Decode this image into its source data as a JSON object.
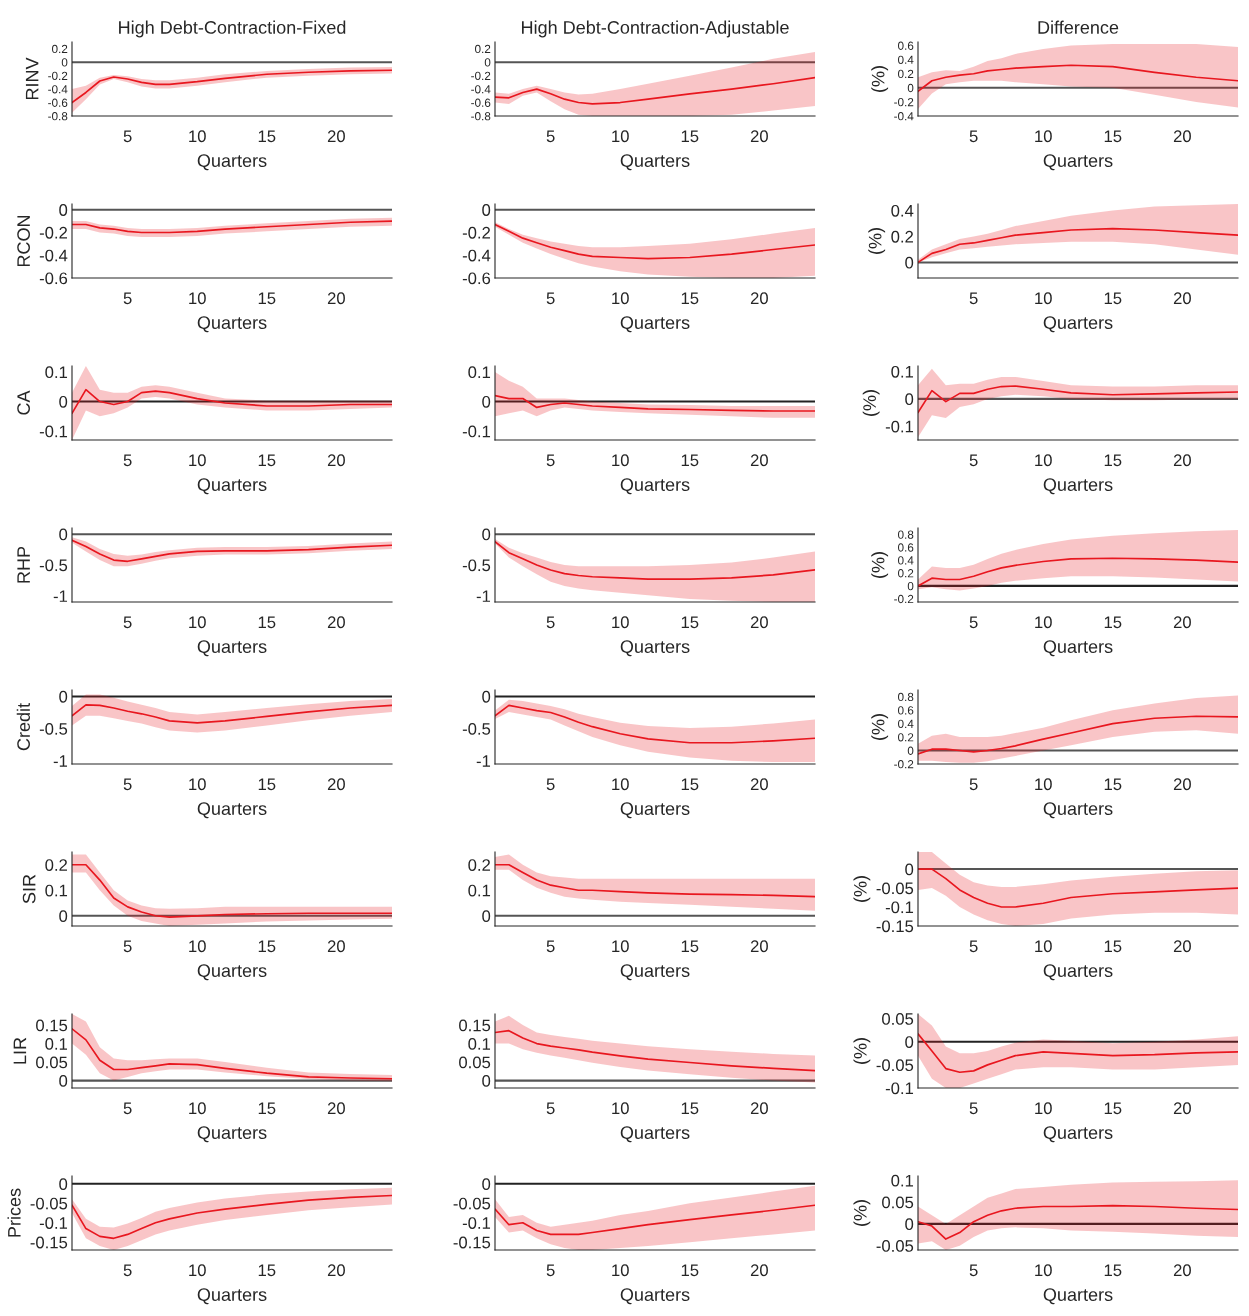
{
  "chart_data": [
    {
      "type": "line",
      "title": "High Debt-Contraction-Fixed",
      "ylabel": "RINV",
      "xlabel": "Quarters",
      "xlim": [
        1,
        24
      ],
      "xticks": [
        5,
        10,
        15,
        20
      ],
      "ylim": [
        -0.8,
        0.3
      ],
      "yticks": [
        -0.8,
        -0.6,
        -0.4,
        -0.2,
        0,
        0.2
      ],
      "ref_lines": [
        {
          "axis": "y",
          "value": 0,
          "color": "#555555"
        }
      ],
      "series": [
        {
          "color": "#e8171f",
          "x": [
            1,
            2,
            3,
            4,
            5,
            6,
            7,
            8,
            10,
            12,
            15,
            18,
            21,
            24
          ],
          "values": [
            -0.6,
            -0.45,
            -0.28,
            -0.22,
            -0.25,
            -0.3,
            -0.33,
            -0.33,
            -0.29,
            -0.24,
            -0.18,
            -0.15,
            -0.13,
            -0.12
          ],
          "lower": [
            -0.75,
            -0.55,
            -0.33,
            -0.25,
            -0.3,
            -0.36,
            -0.39,
            -0.39,
            -0.35,
            -0.3,
            -0.23,
            -0.2,
            -0.18,
            -0.17
          ],
          "upper": [
            -0.4,
            -0.35,
            -0.23,
            -0.19,
            -0.21,
            -0.25,
            -0.27,
            -0.27,
            -0.23,
            -0.18,
            -0.13,
            -0.1,
            -0.08,
            -0.07
          ]
        }
      ]
    },
    {
      "type": "line",
      "title": "High Debt-Contraction-Adjustable",
      "xlabel": "Quarters",
      "xlim": [
        1,
        24
      ],
      "xticks": [
        5,
        10,
        15,
        20
      ],
      "ylim": [
        -0.8,
        0.3
      ],
      "yticks": [
        -0.8,
        -0.6,
        -0.4,
        -0.2,
        0,
        0.2
      ],
      "ref_lines": [
        {
          "axis": "y",
          "value": 0,
          "color": "#555555"
        }
      ],
      "series": [
        {
          "color": "#e8171f",
          "x": [
            1,
            2,
            3,
            4,
            5,
            6,
            7,
            8,
            10,
            12,
            15,
            18,
            21,
            24
          ],
          "values": [
            -0.52,
            -0.53,
            -0.45,
            -0.4,
            -0.47,
            -0.55,
            -0.6,
            -0.62,
            -0.6,
            -0.55,
            -0.47,
            -0.4,
            -0.32,
            -0.23
          ],
          "lower": [
            -0.6,
            -0.62,
            -0.5,
            -0.45,
            -0.58,
            -0.7,
            -0.78,
            -0.8,
            -0.8,
            -0.8,
            -0.8,
            -0.78,
            -0.72,
            -0.65
          ],
          "upper": [
            -0.45,
            -0.47,
            -0.4,
            -0.35,
            -0.4,
            -0.45,
            -0.48,
            -0.47,
            -0.4,
            -0.32,
            -0.2,
            -0.08,
            0.05,
            0.15
          ]
        }
      ]
    },
    {
      "type": "line",
      "title": "Difference",
      "ylabel": "(%)",
      "xlabel": "Quarters",
      "xlim": [
        1,
        24
      ],
      "xticks": [
        5,
        10,
        15,
        20
      ],
      "ylim": [
        -0.4,
        0.65
      ],
      "yticks": [
        -0.4,
        -0.2,
        0,
        0.2,
        0.4,
        0.6
      ],
      "ref_lines": [
        {
          "axis": "y",
          "value": 0,
          "color": "#555555"
        }
      ],
      "series": [
        {
          "color": "#e8171f",
          "x": [
            1,
            2,
            3,
            4,
            5,
            6,
            7,
            8,
            10,
            12,
            15,
            18,
            21,
            24
          ],
          "values": [
            -0.05,
            0.1,
            0.15,
            0.18,
            0.2,
            0.24,
            0.26,
            0.28,
            0.3,
            0.32,
            0.3,
            0.22,
            0.15,
            0.1
          ],
          "lower": [
            -0.3,
            -0.08,
            0.05,
            0.08,
            0.1,
            0.1,
            0.1,
            0.08,
            0.05,
            0.02,
            0,
            -0.1,
            -0.2,
            -0.28
          ],
          "upper": [
            0.15,
            0.22,
            0.25,
            0.24,
            0.3,
            0.38,
            0.42,
            0.48,
            0.55,
            0.6,
            0.62,
            0.62,
            0.62,
            0.58
          ]
        }
      ]
    },
    {
      "type": "line",
      "ylabel": "RCON",
      "xlabel": "Quarters",
      "xlim": [
        1,
        24
      ],
      "xticks": [
        5,
        10,
        15,
        20
      ],
      "ylim": [
        -0.6,
        0.05
      ],
      "yticks": [
        -0.6,
        -0.4,
        -0.2,
        0
      ],
      "ref_lines": [
        {
          "axis": "y",
          "value": 0,
          "color": "#555555"
        }
      ],
      "series": [
        {
          "color": "#e8171f",
          "x": [
            1,
            2,
            3,
            4,
            5,
            6,
            7,
            8,
            10,
            12,
            15,
            18,
            21,
            24
          ],
          "values": [
            -0.13,
            -0.13,
            -0.16,
            -0.17,
            -0.19,
            -0.2,
            -0.2,
            -0.2,
            -0.19,
            -0.17,
            -0.15,
            -0.13,
            -0.11,
            -0.1
          ],
          "lower": [
            -0.17,
            -0.17,
            -0.2,
            -0.21,
            -0.23,
            -0.24,
            -0.24,
            -0.24,
            -0.23,
            -0.21,
            -0.19,
            -0.17,
            -0.15,
            -0.14
          ],
          "upper": [
            -0.1,
            -0.1,
            -0.13,
            -0.14,
            -0.16,
            -0.17,
            -0.17,
            -0.17,
            -0.16,
            -0.14,
            -0.12,
            -0.1,
            -0.08,
            -0.07
          ]
        }
      ]
    },
    {
      "type": "line",
      "xlabel": "Quarters",
      "xlim": [
        1,
        24
      ],
      "xticks": [
        5,
        10,
        15,
        20
      ],
      "ylim": [
        -0.6,
        0.05
      ],
      "yticks": [
        -0.6,
        -0.4,
        -0.2,
        0
      ],
      "ref_lines": [
        {
          "axis": "y",
          "value": 0,
          "color": "#555555"
        }
      ],
      "series": [
        {
          "color": "#e8171f",
          "x": [
            1,
            2,
            3,
            4,
            5,
            6,
            7,
            8,
            10,
            12,
            15,
            18,
            21,
            24
          ],
          "values": [
            -0.13,
            -0.19,
            -0.25,
            -0.29,
            -0.33,
            -0.36,
            -0.39,
            -0.41,
            -0.42,
            -0.43,
            -0.42,
            -0.39,
            -0.35,
            -0.31
          ],
          "lower": [
            -0.15,
            -0.22,
            -0.29,
            -0.34,
            -0.39,
            -0.43,
            -0.47,
            -0.5,
            -0.54,
            -0.57,
            -0.59,
            -0.6,
            -0.6,
            -0.58
          ],
          "upper": [
            -0.11,
            -0.17,
            -0.22,
            -0.25,
            -0.28,
            -0.3,
            -0.32,
            -0.33,
            -0.33,
            -0.32,
            -0.3,
            -0.26,
            -0.21,
            -0.16
          ]
        }
      ]
    },
    {
      "type": "line",
      "ylabel": "(%)",
      "xlabel": "Quarters",
      "xlim": [
        1,
        24
      ],
      "xticks": [
        5,
        10,
        15,
        20
      ],
      "ylim": [
        -0.12,
        0.45
      ],
      "yticks": [
        0,
        0.2,
        0.4
      ],
      "ref_lines": [
        {
          "axis": "y",
          "value": 0,
          "color": "#555555"
        }
      ],
      "series": [
        {
          "color": "#e8171f",
          "x": [
            1,
            2,
            3,
            4,
            5,
            6,
            7,
            8,
            10,
            12,
            15,
            18,
            21,
            24
          ],
          "values": [
            0.0,
            0.07,
            0.1,
            0.14,
            0.15,
            0.17,
            0.19,
            0.21,
            0.23,
            0.25,
            0.26,
            0.25,
            0.23,
            0.21
          ],
          "lower": [
            0,
            0.04,
            0.07,
            0.1,
            0.11,
            0.12,
            0.13,
            0.14,
            0.15,
            0.16,
            0.16,
            0.14,
            0.1,
            0.06
          ],
          "upper": [
            0.02,
            0.1,
            0.14,
            0.18,
            0.2,
            0.22,
            0.25,
            0.28,
            0.32,
            0.36,
            0.4,
            0.43,
            0.44,
            0.45
          ]
        }
      ]
    },
    {
      "type": "line",
      "ylabel": "CA",
      "xlabel": "Quarters",
      "xlim": [
        1,
        24
      ],
      "xticks": [
        5,
        10,
        15,
        20
      ],
      "ylim": [
        -0.13,
        0.12
      ],
      "yticks": [
        -0.1,
        0,
        0.1
      ],
      "ref_lines": [
        {
          "axis": "y",
          "value": 0,
          "color": "#222222"
        }
      ],
      "series": [
        {
          "color": "#e8171f",
          "x": [
            1,
            2,
            3,
            4,
            5,
            6,
            7,
            8,
            10,
            12,
            15,
            18,
            21,
            24
          ],
          "values": [
            -0.04,
            0.04,
            0.0,
            -0.01,
            0.0,
            0.03,
            0.035,
            0.03,
            0.01,
            -0.005,
            -0.015,
            -0.015,
            -0.01,
            -0.01
          ],
          "lower": [
            -0.13,
            -0.03,
            -0.05,
            -0.04,
            -0.02,
            0.01,
            0.015,
            0.01,
            -0.01,
            -0.02,
            -0.03,
            -0.03,
            -0.025,
            -0.02
          ],
          "upper": [
            0.03,
            0.12,
            0.04,
            0.03,
            0.03,
            0.05,
            0.055,
            0.05,
            0.03,
            0.01,
            0.003,
            0.003,
            0.003,
            0.003
          ]
        }
      ]
    },
    {
      "type": "line",
      "xlabel": "Quarters",
      "xlim": [
        1,
        24
      ],
      "xticks": [
        5,
        10,
        15,
        20
      ],
      "ylim": [
        -0.13,
        0.12
      ],
      "yticks": [
        -0.1,
        0,
        0.1
      ],
      "ref_lines": [
        {
          "axis": "y",
          "value": 0,
          "color": "#222222"
        }
      ],
      "series": [
        {
          "color": "#e8171f",
          "x": [
            1,
            2,
            3,
            4,
            5,
            6,
            7,
            8,
            10,
            12,
            15,
            18,
            21,
            24
          ],
          "values": [
            0.02,
            0.01,
            0.01,
            -0.02,
            -0.01,
            -0.005,
            -0.01,
            -0.015,
            -0.02,
            -0.025,
            -0.027,
            -0.03,
            -0.032,
            -0.032
          ],
          "lower": [
            -0.05,
            -0.04,
            -0.03,
            -0.05,
            -0.03,
            -0.02,
            -0.025,
            -0.03,
            -0.035,
            -0.04,
            -0.045,
            -0.05,
            -0.055,
            -0.055
          ],
          "upper": [
            0.1,
            0.07,
            0.05,
            0.01,
            0.01,
            0.01,
            0.005,
            0.0,
            -0.005,
            -0.01,
            -0.012,
            -0.015,
            -0.015,
            -0.015
          ]
        }
      ]
    },
    {
      "type": "line",
      "ylabel": "(%)",
      "xlabel": "Quarters",
      "xlim": [
        1,
        24
      ],
      "xticks": [
        5,
        10,
        15,
        20
      ],
      "ylim": [
        -0.15,
        0.12
      ],
      "yticks": [
        -0.1,
        0,
        0.1
      ],
      "ref_lines": [
        {
          "axis": "y",
          "value": 0,
          "color": "#555555"
        }
      ],
      "series": [
        {
          "color": "#e8171f",
          "x": [
            1,
            2,
            3,
            4,
            5,
            6,
            7,
            8,
            10,
            12,
            15,
            18,
            21,
            24
          ],
          "values": [
            -0.05,
            0.03,
            -0.01,
            0.02,
            0.02,
            0.035,
            0.045,
            0.047,
            0.035,
            0.022,
            0.015,
            0.018,
            0.022,
            0.025
          ],
          "lower": [
            -0.14,
            -0.06,
            -0.07,
            -0.03,
            -0.02,
            0.0,
            0.01,
            0.015,
            0.01,
            0.0,
            -0.005,
            -0.005,
            -0.002,
            0
          ],
          "upper": [
            0.05,
            0.11,
            0.05,
            0.055,
            0.055,
            0.07,
            0.08,
            0.08,
            0.065,
            0.05,
            0.045,
            0.045,
            0.05,
            0.05
          ]
        }
      ]
    },
    {
      "type": "line",
      "ylabel": "RHP",
      "xlabel": "Quarters",
      "xlim": [
        1,
        24
      ],
      "xticks": [
        5,
        10,
        15,
        20
      ],
      "ylim": [
        -1.1,
        0.1
      ],
      "yticks": [
        -1,
        -0.5,
        0
      ],
      "ref_lines": [
        {
          "axis": "y",
          "value": 0,
          "color": "#555555"
        }
      ],
      "series": [
        {
          "color": "#e8171f",
          "x": [
            1,
            2,
            3,
            4,
            5,
            6,
            7,
            8,
            10,
            12,
            15,
            18,
            21,
            24
          ],
          "values": [
            -0.1,
            -0.2,
            -0.32,
            -0.42,
            -0.44,
            -0.4,
            -0.36,
            -0.32,
            -0.28,
            -0.27,
            -0.27,
            -0.25,
            -0.21,
            -0.18
          ],
          "lower": [
            -0.14,
            -0.28,
            -0.42,
            -0.52,
            -0.52,
            -0.48,
            -0.43,
            -0.39,
            -0.35,
            -0.33,
            -0.33,
            -0.31,
            -0.27,
            -0.24
          ],
          "upper": [
            -0.05,
            -0.12,
            -0.24,
            -0.32,
            -0.35,
            -0.33,
            -0.29,
            -0.26,
            -0.22,
            -0.21,
            -0.21,
            -0.19,
            -0.15,
            -0.12
          ]
        }
      ]
    },
    {
      "type": "line",
      "xlabel": "Quarters",
      "xlim": [
        1,
        24
      ],
      "xticks": [
        5,
        10,
        15,
        20
      ],
      "ylim": [
        -1.1,
        0.1
      ],
      "yticks": [
        -1,
        -0.5,
        0
      ],
      "ref_lines": [
        {
          "axis": "y",
          "value": 0,
          "color": "#555555"
        }
      ],
      "series": [
        {
          "color": "#e8171f",
          "x": [
            1,
            2,
            3,
            4,
            5,
            6,
            7,
            8,
            10,
            12,
            15,
            18,
            21,
            24
          ],
          "values": [
            -0.12,
            -0.3,
            -0.4,
            -0.5,
            -0.58,
            -0.64,
            -0.67,
            -0.69,
            -0.71,
            -0.73,
            -0.73,
            -0.71,
            -0.66,
            -0.58
          ],
          "lower": [
            -0.15,
            -0.38,
            -0.52,
            -0.65,
            -0.77,
            -0.84,
            -0.88,
            -0.91,
            -0.95,
            -0.99,
            -1.05,
            -1.08,
            -1.1,
            -1.1
          ],
          "upper": [
            -0.08,
            -0.22,
            -0.31,
            -0.38,
            -0.45,
            -0.5,
            -0.52,
            -0.52,
            -0.52,
            -0.52,
            -0.5,
            -0.46,
            -0.38,
            -0.28
          ]
        }
      ]
    },
    {
      "type": "line",
      "ylabel": "(%)",
      "xlabel": "Quarters",
      "xlim": [
        1,
        24
      ],
      "xticks": [
        5,
        10,
        15,
        20
      ],
      "ylim": [
        -0.25,
        0.9
      ],
      "yticks": [
        -0.2,
        0,
        0.2,
        0.4,
        0.6,
        0.8
      ],
      "ref_lines": [
        {
          "axis": "y",
          "value": 0,
          "color": "#222222"
        }
      ],
      "series": [
        {
          "color": "#e8171f",
          "x": [
            1,
            2,
            3,
            4,
            5,
            6,
            7,
            8,
            10,
            12,
            15,
            18,
            21,
            24
          ],
          "values": [
            0.0,
            0.12,
            0.1,
            0.1,
            0.15,
            0.22,
            0.28,
            0.32,
            0.38,
            0.42,
            0.43,
            0.42,
            0.4,
            0.37
          ],
          "lower": [
            -0.05,
            -0.02,
            -0.05,
            -0.07,
            -0.04,
            0.0,
            0.05,
            0.08,
            0.12,
            0.15,
            0.15,
            0.13,
            0.1,
            0.07
          ],
          "upper": [
            0.1,
            0.3,
            0.28,
            0.28,
            0.33,
            0.42,
            0.5,
            0.56,
            0.65,
            0.72,
            0.78,
            0.82,
            0.85,
            0.87
          ]
        }
      ]
    },
    {
      "type": "line",
      "ylabel": "Credit",
      "xlabel": "Quarters",
      "xlim": [
        1,
        24
      ],
      "xticks": [
        5,
        10,
        15,
        20
      ],
      "ylim": [
        -1.05,
        0.1
      ],
      "yticks": [
        -1,
        -0.5,
        0
      ],
      "ref_lines": [
        {
          "axis": "y",
          "value": 0,
          "color": "#222222"
        }
      ],
      "series": [
        {
          "color": "#e8171f",
          "x": [
            1,
            2,
            3,
            4,
            5,
            6,
            7,
            8,
            10,
            12,
            15,
            18,
            21,
            24
          ],
          "values": [
            -0.3,
            -0.13,
            -0.14,
            -0.18,
            -0.23,
            -0.27,
            -0.32,
            -0.38,
            -0.41,
            -0.38,
            -0.31,
            -0.24,
            -0.18,
            -0.14
          ],
          "lower": [
            -0.45,
            -0.3,
            -0.3,
            -0.34,
            -0.38,
            -0.42,
            -0.48,
            -0.53,
            -0.56,
            -0.53,
            -0.45,
            -0.37,
            -0.3,
            -0.24
          ],
          "upper": [
            -0.15,
            0.03,
            0.03,
            -0.02,
            -0.08,
            -0.13,
            -0.18,
            -0.24,
            -0.28,
            -0.24,
            -0.18,
            -0.12,
            -0.07,
            -0.04
          ]
        }
      ]
    },
    {
      "type": "line",
      "xlabel": "Quarters",
      "xlim": [
        1,
        24
      ],
      "xticks": [
        5,
        10,
        15,
        20
      ],
      "ylim": [
        -1.05,
        0.1
      ],
      "yticks": [
        -1,
        -0.5,
        0
      ],
      "ref_lines": [
        {
          "axis": "y",
          "value": 0,
          "color": "#222222"
        }
      ],
      "series": [
        {
          "color": "#e8171f",
          "x": [
            1,
            2,
            3,
            4,
            5,
            6,
            7,
            8,
            10,
            12,
            15,
            18,
            21,
            24
          ],
          "values": [
            -0.3,
            -0.14,
            -0.18,
            -0.22,
            -0.25,
            -0.32,
            -0.4,
            -0.47,
            -0.58,
            -0.66,
            -0.72,
            -0.72,
            -0.69,
            -0.65
          ],
          "lower": [
            -0.35,
            -0.24,
            -0.28,
            -0.32,
            -0.36,
            -0.45,
            -0.54,
            -0.63,
            -0.76,
            -0.86,
            -0.95,
            -1.0,
            -1.02,
            -1.02
          ],
          "upper": [
            -0.22,
            -0.05,
            -0.07,
            -0.11,
            -0.15,
            -0.2,
            -0.27,
            -0.32,
            -0.41,
            -0.46,
            -0.49,
            -0.47,
            -0.42,
            -0.36
          ]
        }
      ]
    },
    {
      "type": "line",
      "ylabel": "(%)",
      "xlabel": "Quarters",
      "xlim": [
        1,
        24
      ],
      "xticks": [
        5,
        10,
        15,
        20
      ],
      "ylim": [
        -0.2,
        0.9
      ],
      "yticks": [
        -0.2,
        0,
        0.2,
        0.4,
        0.6,
        0.8
      ],
      "ref_lines": [
        {
          "axis": "y",
          "value": 0,
          "color": "#555555"
        }
      ],
      "series": [
        {
          "color": "#e8171f",
          "x": [
            1,
            2,
            3,
            4,
            5,
            6,
            7,
            8,
            10,
            12,
            15,
            18,
            21,
            24
          ],
          "values": [
            -0.05,
            0.02,
            0.02,
            0.0,
            -0.02,
            0.0,
            0.03,
            0.07,
            0.17,
            0.26,
            0.4,
            0.48,
            0.51,
            0.5
          ],
          "lower": [
            -0.15,
            -0.15,
            -0.17,
            -0.18,
            -0.18,
            -0.16,
            -0.12,
            -0.08,
            0.0,
            0.08,
            0.2,
            0.28,
            0.3,
            0.25
          ],
          "upper": [
            0.1,
            0.22,
            0.25,
            0.2,
            0.2,
            0.2,
            0.22,
            0.26,
            0.34,
            0.45,
            0.6,
            0.7,
            0.78,
            0.82
          ]
        }
      ]
    },
    {
      "type": "line",
      "ylabel": "SIR",
      "xlabel": "Quarters",
      "xlim": [
        1,
        24
      ],
      "xticks": [
        5,
        10,
        15,
        20
      ],
      "ylim": [
        -0.04,
        0.25
      ],
      "yticks": [
        0,
        0.1,
        0.2
      ],
      "ref_lines": [
        {
          "axis": "y",
          "value": 0,
          "color": "#555555"
        }
      ],
      "series": [
        {
          "color": "#e8171f",
          "x": [
            1,
            2,
            3,
            4,
            5,
            6,
            7,
            8,
            10,
            12,
            15,
            18,
            21,
            24
          ],
          "values": [
            0.2,
            0.2,
            0.14,
            0.07,
            0.035,
            0.015,
            0.0,
            -0.005,
            0.0,
            0.005,
            0.008,
            0.01,
            0.01,
            0.01
          ],
          "lower": [
            0.17,
            0.17,
            0.1,
            0.04,
            0.0,
            -0.02,
            -0.03,
            -0.04,
            -0.035,
            -0.03,
            -0.022,
            -0.018,
            -0.015,
            -0.012
          ],
          "upper": [
            0.24,
            0.24,
            0.17,
            0.1,
            0.06,
            0.04,
            0.03,
            0.028,
            0.03,
            0.035,
            0.035,
            0.035,
            0.035,
            0.035
          ]
        }
      ]
    },
    {
      "type": "line",
      "xlabel": "Quarters",
      "xlim": [
        1,
        24
      ],
      "xticks": [
        5,
        10,
        15,
        20
      ],
      "ylim": [
        -0.04,
        0.25
      ],
      "yticks": [
        0,
        0.1,
        0.2
      ],
      "ref_lines": [
        {
          "axis": "y",
          "value": 0,
          "color": "#555555"
        }
      ],
      "series": [
        {
          "color": "#e8171f",
          "x": [
            1,
            2,
            3,
            4,
            5,
            6,
            7,
            8,
            10,
            12,
            15,
            18,
            21,
            24
          ],
          "values": [
            0.2,
            0.2,
            0.17,
            0.14,
            0.12,
            0.11,
            0.1,
            0.1,
            0.095,
            0.09,
            0.085,
            0.083,
            0.08,
            0.075
          ],
          "lower": [
            0.18,
            0.18,
            0.14,
            0.11,
            0.09,
            0.075,
            0.068,
            0.063,
            0.055,
            0.05,
            0.043,
            0.035,
            0.028,
            0.02
          ],
          "upper": [
            0.23,
            0.24,
            0.2,
            0.17,
            0.155,
            0.15,
            0.145,
            0.145,
            0.145,
            0.145,
            0.145,
            0.145,
            0.145,
            0.145
          ]
        }
      ]
    },
    {
      "type": "line",
      "ylabel": "(%)",
      "xlabel": "Quarters",
      "xlim": [
        1,
        24
      ],
      "xticks": [
        5,
        10,
        15,
        20
      ],
      "ylim": [
        -0.15,
        0.045
      ],
      "yticks": [
        -0.15,
        -0.1,
        -0.05,
        0
      ],
      "ref_lines": [
        {
          "axis": "y",
          "value": 0,
          "color": "#555555"
        }
      ],
      "series": [
        {
          "color": "#e8171f",
          "x": [
            1,
            2,
            3,
            4,
            5,
            6,
            7,
            8,
            10,
            12,
            15,
            18,
            21,
            24
          ],
          "values": [
            0.0,
            0.0,
            -0.025,
            -0.055,
            -0.075,
            -0.09,
            -0.1,
            -0.1,
            -0.09,
            -0.075,
            -0.065,
            -0.06,
            -0.055,
            -0.05
          ],
          "lower": [
            -0.055,
            -0.05,
            -0.07,
            -0.1,
            -0.12,
            -0.135,
            -0.145,
            -0.15,
            -0.145,
            -0.13,
            -0.12,
            -0.115,
            -0.115,
            -0.12
          ],
          "upper": [
            0.045,
            0.045,
            0.015,
            -0.015,
            -0.035,
            -0.043,
            -0.047,
            -0.047,
            -0.04,
            -0.03,
            -0.02,
            -0.012,
            -0.006,
            -0.003
          ]
        }
      ]
    },
    {
      "type": "line",
      "ylabel": "LIR",
      "xlabel": "Quarters",
      "xlim": [
        1,
        24
      ],
      "xticks": [
        5,
        10,
        15,
        20
      ],
      "ylim": [
        -0.02,
        0.18
      ],
      "yticks": [
        0,
        0.05,
        0.1,
        0.15
      ],
      "ref_lines": [
        {
          "axis": "y",
          "value": 0,
          "color": "#555555"
        }
      ],
      "series": [
        {
          "color": "#e8171f",
          "x": [
            1,
            2,
            3,
            4,
            5,
            6,
            7,
            8,
            10,
            12,
            15,
            18,
            21,
            24
          ],
          "values": [
            0.14,
            0.11,
            0.055,
            0.03,
            0.03,
            0.035,
            0.04,
            0.045,
            0.043,
            0.033,
            0.02,
            0.01,
            0.007,
            0.005
          ],
          "lower": [
            0.1,
            0.07,
            0.02,
            0.0,
            0.01,
            0.02,
            0.025,
            0.03,
            0.03,
            0.022,
            0.012,
            0.004,
            0.0,
            -0.002
          ],
          "upper": [
            0.18,
            0.16,
            0.09,
            0.06,
            0.055,
            0.055,
            0.058,
            0.06,
            0.06,
            0.05,
            0.035,
            0.022,
            0.018,
            0.015
          ]
        }
      ]
    },
    {
      "type": "line",
      "xlabel": "Quarters",
      "xlim": [
        1,
        24
      ],
      "xticks": [
        5,
        10,
        15,
        20
      ],
      "ylim": [
        -0.02,
        0.18
      ],
      "yticks": [
        0,
        0.05,
        0.1,
        0.15
      ],
      "ref_lines": [
        {
          "axis": "y",
          "value": 0,
          "color": "#555555"
        }
      ],
      "series": [
        {
          "color": "#e8171f",
          "x": [
            1,
            2,
            3,
            4,
            5,
            6,
            7,
            8,
            10,
            12,
            15,
            18,
            21,
            24
          ],
          "values": [
            0.13,
            0.135,
            0.115,
            0.1,
            0.093,
            0.088,
            0.083,
            0.077,
            0.067,
            0.058,
            0.049,
            0.04,
            0.033,
            0.027
          ],
          "lower": [
            0.1,
            0.1,
            0.085,
            0.075,
            0.068,
            0.062,
            0.055,
            0.048,
            0.037,
            0.027,
            0.017,
            0.008,
            0.0,
            -0.005
          ],
          "upper": [
            0.16,
            0.175,
            0.15,
            0.13,
            0.123,
            0.118,
            0.113,
            0.108,
            0.1,
            0.093,
            0.085,
            0.078,
            0.072,
            0.068
          ]
        }
      ]
    },
    {
      "type": "line",
      "ylabel": "(%)",
      "xlabel": "Quarters",
      "xlim": [
        1,
        24
      ],
      "xticks": [
        5,
        10,
        15,
        20
      ],
      "ylim": [
        -0.1,
        0.06
      ],
      "yticks": [
        -0.1,
        -0.05,
        0,
        0.05
      ],
      "ref_lines": [
        {
          "axis": "y",
          "value": 0,
          "color": "#222222"
        }
      ],
      "series": [
        {
          "color": "#e8171f",
          "x": [
            1,
            2,
            3,
            4,
            5,
            6,
            7,
            8,
            10,
            12,
            15,
            18,
            21,
            24
          ],
          "values": [
            0.017,
            -0.02,
            -0.058,
            -0.066,
            -0.063,
            -0.05,
            -0.04,
            -0.03,
            -0.022,
            -0.025,
            -0.03,
            -0.028,
            -0.024,
            -0.022
          ],
          "lower": [
            -0.03,
            -0.08,
            -0.1,
            -0.1,
            -0.09,
            -0.08,
            -0.07,
            -0.06,
            -0.055,
            -0.055,
            -0.06,
            -0.06,
            -0.055,
            -0.05
          ],
          "upper": [
            0.06,
            0.035,
            -0.01,
            -0.025,
            -0.025,
            -0.02,
            -0.01,
            -0.002,
            0.005,
            0.002,
            -0.003,
            0.0,
            0.005,
            0.012
          ]
        }
      ]
    },
    {
      "type": "line",
      "ylabel": "Prices",
      "xlabel": "Quarters",
      "xlim": [
        1,
        24
      ],
      "xticks": [
        5,
        10,
        15,
        20
      ],
      "ylim": [
        -0.17,
        0.02
      ],
      "yticks": [
        -0.15,
        -0.1,
        -0.05,
        0
      ],
      "ref_lines": [
        {
          "axis": "y",
          "value": 0,
          "color": "#222222"
        }
      ],
      "series": [
        {
          "color": "#e8171f",
          "x": [
            1,
            2,
            3,
            4,
            5,
            6,
            7,
            8,
            10,
            12,
            15,
            18,
            21,
            24
          ],
          "values": [
            -0.055,
            -0.115,
            -0.135,
            -0.14,
            -0.13,
            -0.115,
            -0.1,
            -0.09,
            -0.075,
            -0.065,
            -0.053,
            -0.042,
            -0.035,
            -0.03
          ],
          "lower": [
            -0.075,
            -0.14,
            -0.16,
            -0.17,
            -0.16,
            -0.145,
            -0.13,
            -0.12,
            -0.105,
            -0.093,
            -0.08,
            -0.068,
            -0.06,
            -0.053
          ],
          "upper": [
            -0.04,
            -0.09,
            -0.11,
            -0.112,
            -0.102,
            -0.088,
            -0.072,
            -0.062,
            -0.048,
            -0.038,
            -0.027,
            -0.02,
            -0.014,
            -0.01
          ]
        }
      ]
    },
    {
      "type": "line",
      "xlabel": "Quarters",
      "xlim": [
        1,
        24
      ],
      "xticks": [
        5,
        10,
        15,
        20
      ],
      "ylim": [
        -0.17,
        0.02
      ],
      "yticks": [
        -0.15,
        -0.1,
        -0.05,
        0
      ],
      "ref_lines": [
        {
          "axis": "y",
          "value": 0,
          "color": "#222222"
        }
      ],
      "series": [
        {
          "color": "#e8171f",
          "x": [
            1,
            2,
            3,
            4,
            5,
            6,
            7,
            8,
            10,
            12,
            15,
            18,
            21,
            24
          ],
          "values": [
            -0.065,
            -0.105,
            -0.1,
            -0.12,
            -0.13,
            -0.13,
            -0.13,
            -0.125,
            -0.115,
            -0.105,
            -0.092,
            -0.08,
            -0.068,
            -0.055
          ],
          "lower": [
            -0.085,
            -0.125,
            -0.12,
            -0.14,
            -0.155,
            -0.165,
            -0.17,
            -0.17,
            -0.165,
            -0.16,
            -0.15,
            -0.14,
            -0.13,
            -0.12
          ],
          "upper": [
            -0.04,
            -0.085,
            -0.08,
            -0.1,
            -0.11,
            -0.105,
            -0.1,
            -0.095,
            -0.08,
            -0.07,
            -0.05,
            -0.035,
            -0.02,
            -0.005
          ]
        }
      ]
    },
    {
      "type": "line",
      "ylabel": "(%)",
      "xlabel": "Quarters",
      "xlim": [
        1,
        24
      ],
      "xticks": [
        5,
        10,
        15,
        20
      ],
      "ylim": [
        -0.06,
        0.11
      ],
      "yticks": [
        -0.05,
        0,
        0.05,
        0.1
      ],
      "ref_lines": [
        {
          "axis": "y",
          "value": 0,
          "color": "#222222"
        }
      ],
      "series": [
        {
          "color": "#e8171f",
          "x": [
            1,
            2,
            3,
            4,
            5,
            6,
            7,
            8,
            10,
            12,
            15,
            18,
            21,
            24
          ],
          "values": [
            0.005,
            -0.005,
            -0.035,
            -0.02,
            0.005,
            0.02,
            0.03,
            0.036,
            0.04,
            0.04,
            0.042,
            0.04,
            0.036,
            0.033
          ],
          "lower": [
            -0.045,
            -0.04,
            -0.06,
            -0.05,
            -0.03,
            -0.015,
            -0.01,
            -0.008,
            -0.01,
            -0.015,
            -0.018,
            -0.022,
            -0.027,
            -0.03
          ],
          "upper": [
            0.04,
            0.02,
            0.0,
            0.02,
            0.04,
            0.06,
            0.07,
            0.08,
            0.085,
            0.09,
            0.095,
            0.097,
            0.098,
            0.1
          ]
        }
      ]
    }
  ]
}
